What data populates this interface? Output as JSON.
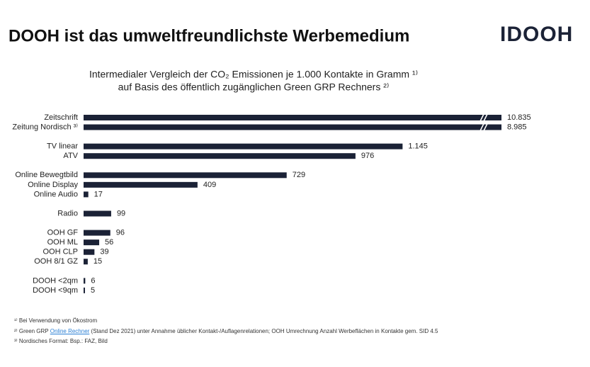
{
  "header": {
    "title": "DOOH ist das umweltfreundlichste Werbemedium",
    "logo": "IDOOH"
  },
  "chart_data": {
    "type": "bar",
    "orientation": "horizontal",
    "title": "Intermedialer Vergleich der CO₂ Emissionen je 1.000 Kontakte in Gramm ¹⁾",
    "subtitle": "auf Basis des öffentlich zugänglichen Green GRP Rechners ²⁾",
    "categories": [
      "Zeitschrift",
      "Zeitung Nordisch ³⁾",
      null,
      "TV linear",
      "ATV",
      null,
      "Online Bewegtbild",
      "Online Display",
      "Online Audio",
      null,
      "Radio",
      null,
      "OOH GF",
      "OOH ML",
      "OOH CLP",
      "OOH 8/1 GZ",
      null,
      "DOOH <2qm",
      "DOOH <9qm"
    ],
    "values": [
      10835,
      8985,
      null,
      1145,
      976,
      null,
      729,
      409,
      17,
      null,
      99,
      null,
      96,
      56,
      39,
      15,
      null,
      6,
      5
    ],
    "value_labels": [
      "10.835",
      "8.985",
      null,
      "1.145",
      "976",
      null,
      "729",
      "409",
      "17",
      null,
      "99",
      null,
      "96",
      "56",
      "39",
      "15",
      null,
      "6",
      "5"
    ],
    "color": "#1b2236",
    "xlim": [
      0,
      1500
    ],
    "axis_break": true
  },
  "footnotes": [
    {
      "parts": [
        "¹⁾ Bei Verwendung von Ökostrom"
      ]
    },
    {
      "parts": [
        "²⁾ Green GRP ",
        "Online Rechner",
        " (Stand Dez 2021) unter Annahme üblicher Kontakt-/Auflagenrelationen; OOH Umrechnung Anzahl Werbeflächen in Kontakte gem. SID 4.5"
      ]
    },
    {
      "parts": [
        "³⁾ Nordisches Format: Bsp.: FAZ, Bild"
      ]
    }
  ]
}
